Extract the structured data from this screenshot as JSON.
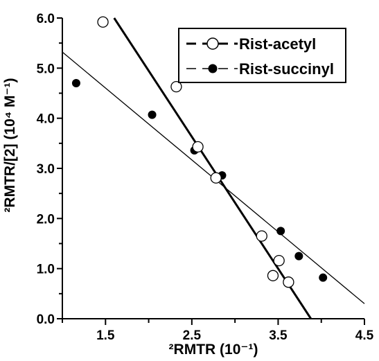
{
  "chart_data": {
    "type": "scatter",
    "xlabel": "²RMTR (10⁻¹)",
    "ylabel": "²RMTR/[2] (10⁴ M⁻¹)",
    "xlim": [
      1.0,
      4.5
    ],
    "ylim": [
      0.0,
      6.0
    ],
    "x_ticks": [
      "1.5",
      "2.5",
      "3.5",
      "4.5"
    ],
    "y_ticks": [
      "0.0",
      "1.0",
      "2.0",
      "3.0",
      "4.0",
      "5.0",
      "6.0"
    ],
    "grid": false,
    "legend_position": "top-right",
    "series": [
      {
        "name": "Rist-acetyl",
        "marker": "open-circle",
        "line_style": "dashed",
        "line_color": "#000000",
        "points": [
          {
            "x": 1.47,
            "y": 5.92
          },
          {
            "x": 2.32,
            "y": 4.63
          },
          {
            "x": 2.57,
            "y": 3.43
          },
          {
            "x": 2.78,
            "y": 2.81
          },
          {
            "x": 3.31,
            "y": 1.65
          },
          {
            "x": 3.51,
            "y": 1.16
          },
          {
            "x": 3.44,
            "y": 0.86
          },
          {
            "x": 3.62,
            "y": 0.73
          }
        ],
        "fit_line": {
          "x": [
            1.6,
            3.88
          ],
          "y": [
            6.0,
            0.0
          ]
        }
      },
      {
        "name": "Rist-succinyl",
        "marker": "filled-circle",
        "line_style": "solid-thin",
        "line_color": "#000000",
        "points": [
          {
            "x": 1.16,
            "y": 4.7
          },
          {
            "x": 2.04,
            "y": 4.07
          },
          {
            "x": 2.53,
            "y": 3.36
          },
          {
            "x": 2.85,
            "y": 2.86
          },
          {
            "x": 3.53,
            "y": 1.75
          },
          {
            "x": 3.74,
            "y": 1.25
          },
          {
            "x": 4.02,
            "y": 0.82
          }
        ],
        "fit_line": {
          "x": [
            1.0,
            4.5
          ],
          "y": [
            5.32,
            0.3
          ]
        }
      }
    ]
  }
}
